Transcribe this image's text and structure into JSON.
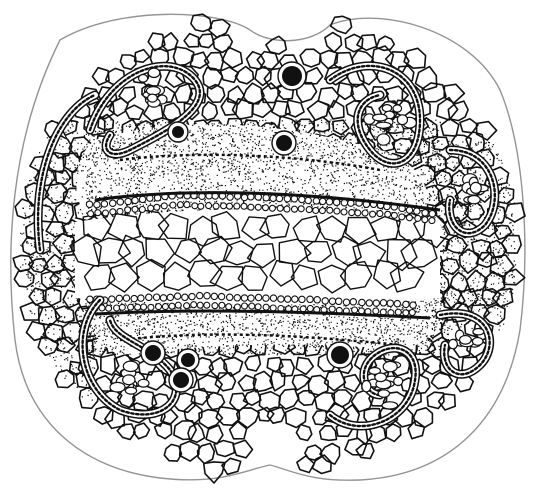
{
  "image": {
    "subject": "cell-illustration",
    "style": "black-ink-on-white",
    "colors": {
      "ink": "#111111",
      "paper": "#ffffff"
    }
  }
}
